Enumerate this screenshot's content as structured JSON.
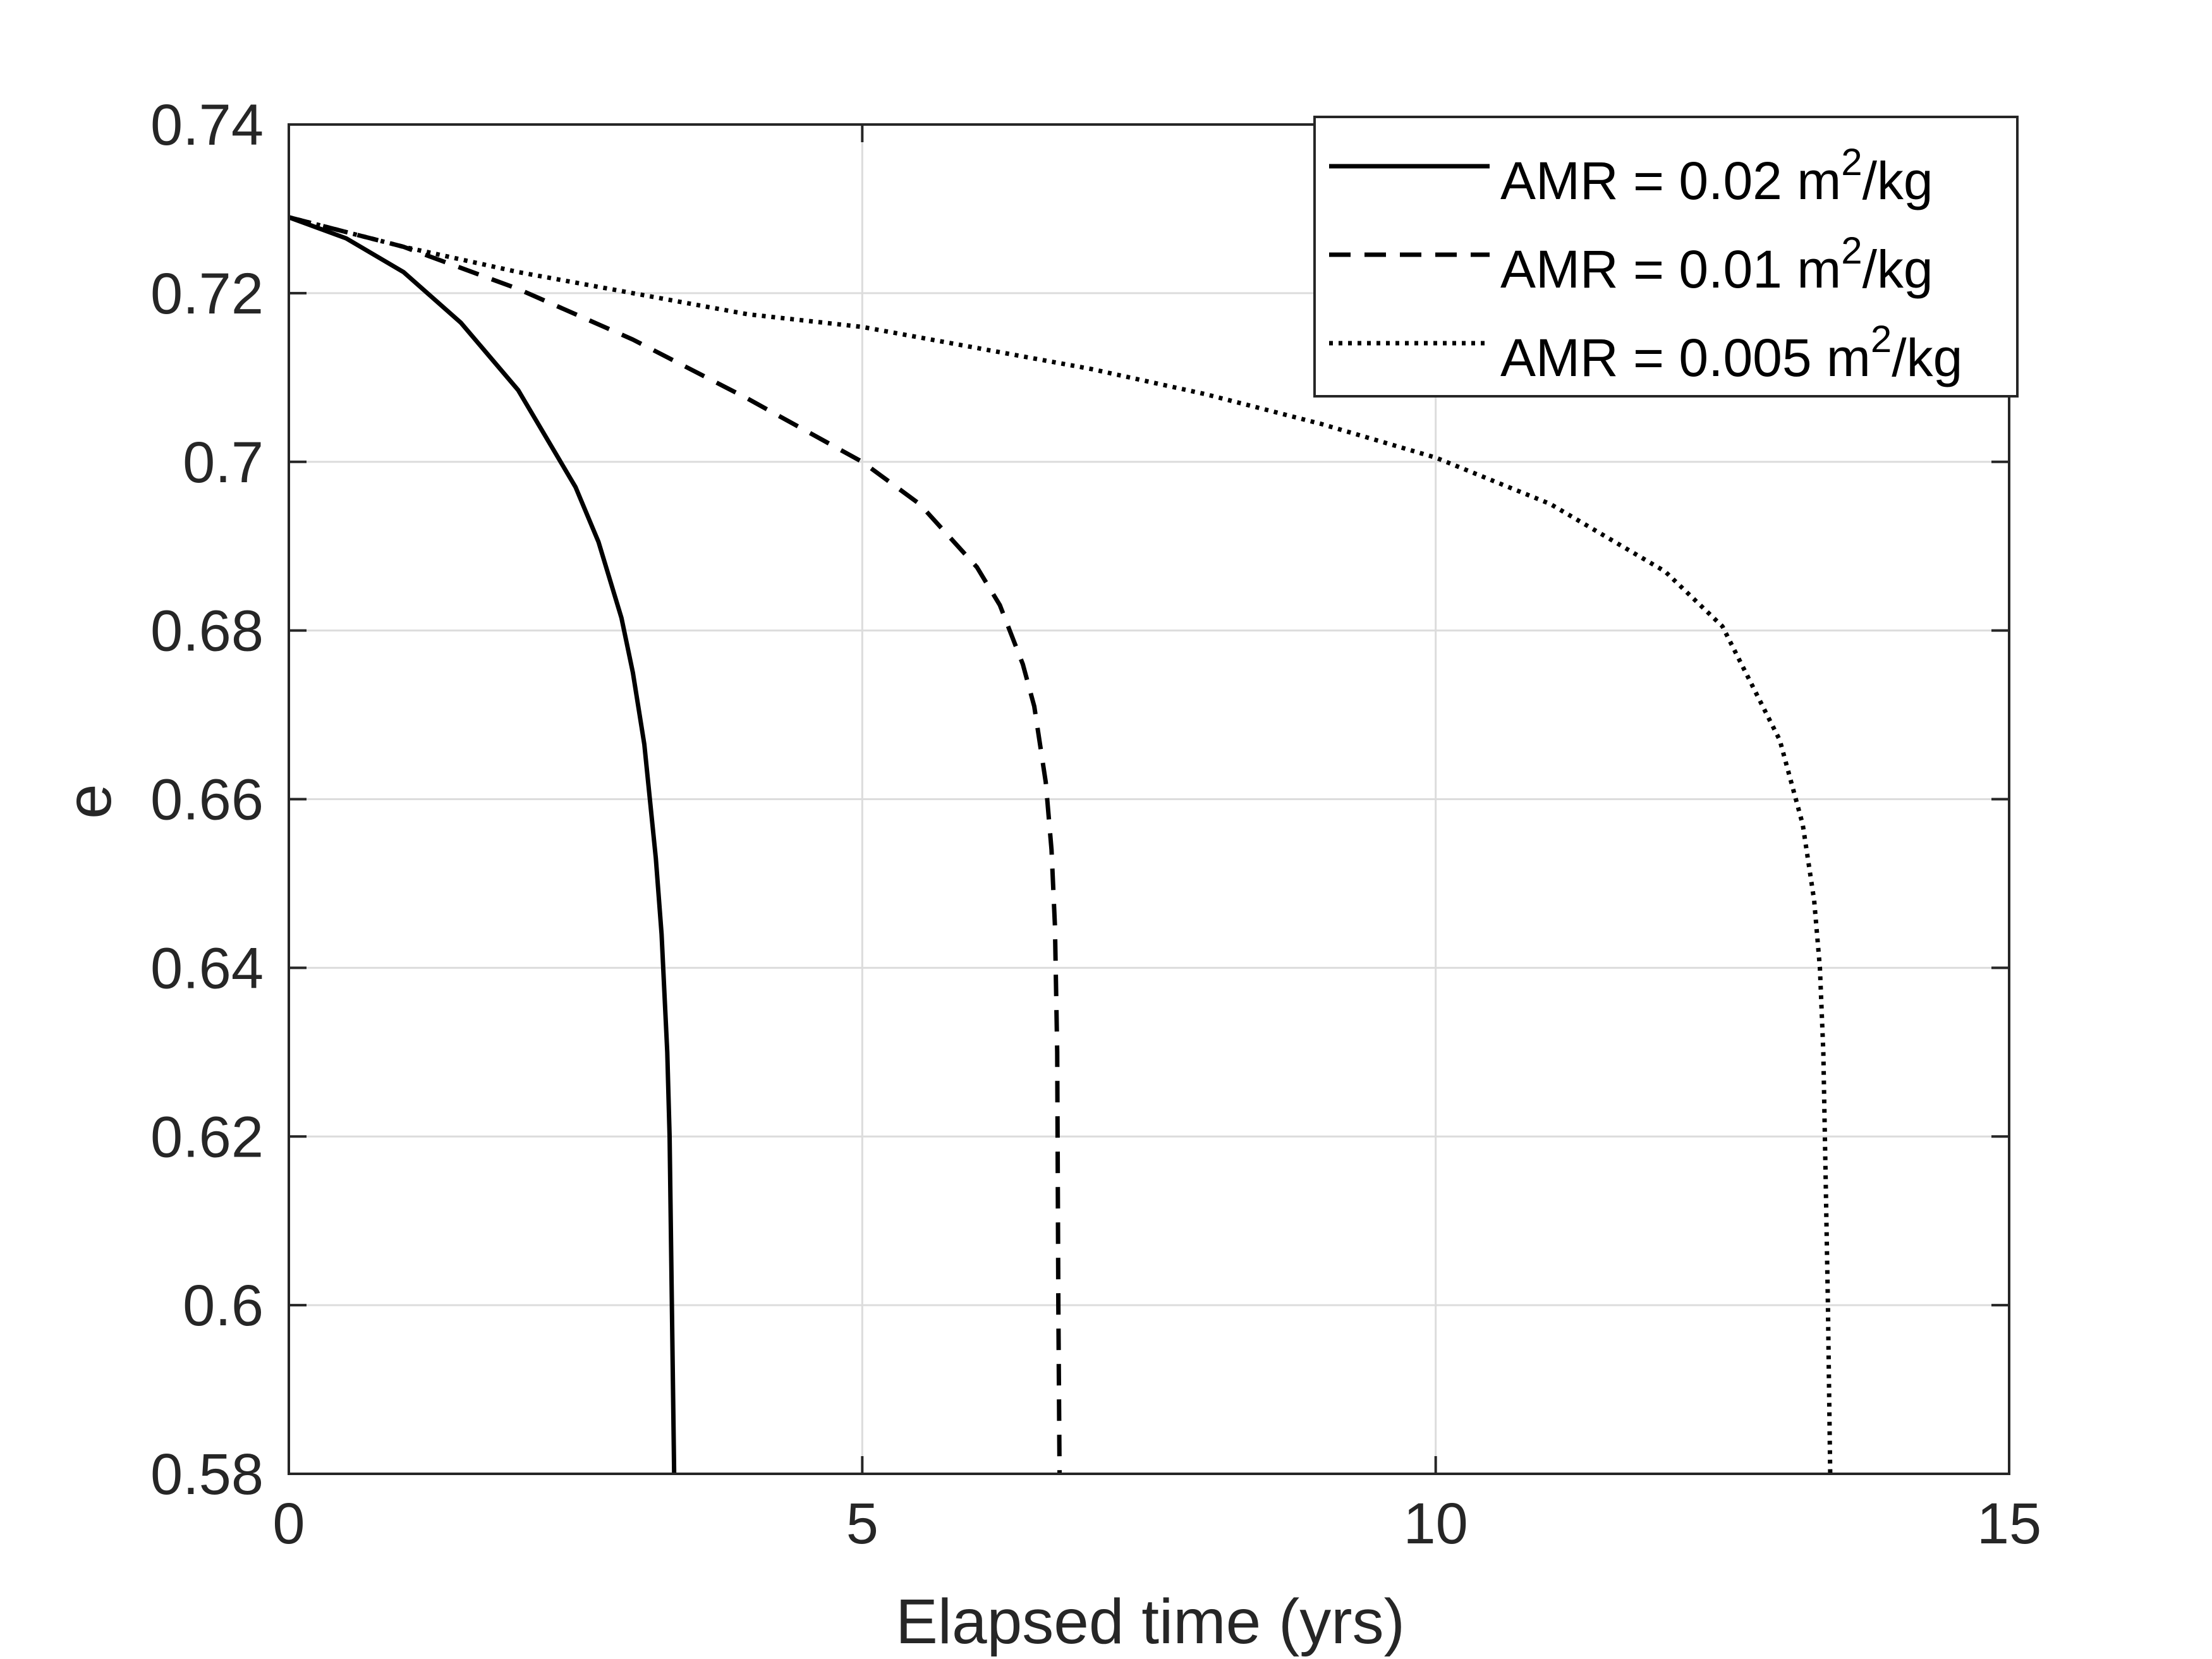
{
  "chart_data": {
    "type": "line",
    "title": "",
    "xlabel": "Elapsed time (yrs)",
    "ylabel": "e",
    "xlim": [
      0,
      15
    ],
    "ylim": [
      0.58,
      0.74
    ],
    "x_ticks": [
      0,
      5,
      10,
      15
    ],
    "x_tick_labels": [
      "0",
      "5",
      "10",
      "15"
    ],
    "y_ticks": [
      0.58,
      0.6,
      0.62,
      0.64,
      0.66,
      0.68,
      0.7,
      0.72,
      0.74
    ],
    "y_tick_labels": [
      "0.58",
      "0.6",
      "0.62",
      "0.64",
      "0.66",
      "0.68",
      "0.7",
      "0.72",
      "0.74"
    ],
    "grid": true,
    "legend_position": "top-right",
    "colors": {
      "line": "#000000",
      "grid": "#dcdcdc",
      "axis": "#262626",
      "background": "#ffffff"
    },
    "series": [
      {
        "name": "AMR = 0.02 m²/kg",
        "legend_parts": [
          "AMR = 0.02 m",
          "2",
          "/kg"
        ],
        "line_style": "solid",
        "x": [
          0,
          0.5,
          1.0,
          1.5,
          2.0,
          2.5,
          2.7,
          2.9,
          3.0,
          3.1,
          3.2,
          3.25,
          3.3,
          3.32,
          3.33,
          3.34,
          3.35,
          3.36
        ],
        "y": [
          0.729,
          0.7265,
          0.7225,
          0.7165,
          0.7085,
          0.697,
          0.6905,
          0.6815,
          0.675,
          0.6665,
          0.653,
          0.644,
          0.63,
          0.62,
          0.61,
          0.6,
          0.59,
          0.58
        ]
      },
      {
        "name": "AMR = 0.01 m²/kg",
        "legend_parts": [
          "AMR = 0.01 m",
          "2",
          "/kg"
        ],
        "line_style": "dashed",
        "x": [
          0,
          1.0,
          2.0,
          3.0,
          4.0,
          5.0,
          5.5,
          6.0,
          6.2,
          6.4,
          6.5,
          6.6,
          6.65,
          6.68,
          6.7,
          6.71,
          6.72
        ],
        "y": [
          0.729,
          0.7255,
          0.7205,
          0.7145,
          0.7075,
          0.7,
          0.695,
          0.6875,
          0.683,
          0.676,
          0.671,
          0.662,
          0.654,
          0.645,
          0.63,
          0.6,
          0.58
        ]
      },
      {
        "name": "AMR = 0.005 m²/kg",
        "legend_parts": [
          "AMR = 0.005 m",
          "2",
          "/kg"
        ],
        "line_style": "dotted",
        "x": [
          0,
          1,
          2,
          3,
          4,
          5,
          6,
          7,
          8,
          9,
          10,
          11,
          12,
          12.5,
          13.0,
          13.2,
          13.3,
          13.35,
          13.38,
          13.4,
          13.42,
          13.44
        ],
        "y": [
          0.729,
          0.7255,
          0.7225,
          0.72,
          0.7175,
          0.716,
          0.7135,
          0.711,
          0.708,
          0.7045,
          0.7005,
          0.695,
          0.687,
          0.6805,
          0.667,
          0.657,
          0.648,
          0.64,
          0.63,
          0.615,
          0.6,
          0.58
        ]
      }
    ]
  }
}
